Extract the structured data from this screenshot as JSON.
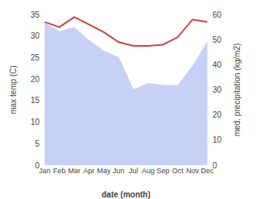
{
  "chart_data": {
    "type": "area",
    "categories": [
      "Jan",
      "Feb",
      "Mar",
      "Apr",
      "May",
      "Jun",
      "Jul",
      "Aug",
      "Sep",
      "Oct",
      "Nov",
      "Dec"
    ],
    "xlabel": "date (month)",
    "ylabel": "max temp (C)",
    "y2label": "med. precipitation (kg/m2)",
    "series": [
      {
        "type": "area",
        "color": "#c8d0f5",
        "values": [
          33,
          31,
          32,
          29,
          26.5,
          25,
          17.5,
          19,
          18.5,
          18.5,
          23,
          28.5
        ]
      },
      {
        "type": "line",
        "color": "#cc4444",
        "axis": "y2",
        "values": [
          57,
          55,
          59,
          56,
          53,
          49,
          47.5,
          47.5,
          48,
          51,
          58,
          57
        ]
      }
    ],
    "ylim": [
      0,
      35
    ],
    "yticks": [
      0,
      5,
      10,
      15,
      20,
      25,
      30,
      35
    ],
    "y2lim": [
      0,
      60
    ],
    "y2ticks": [
      0,
      10,
      20,
      30,
      40,
      50,
      60
    ],
    "grid": false
  }
}
